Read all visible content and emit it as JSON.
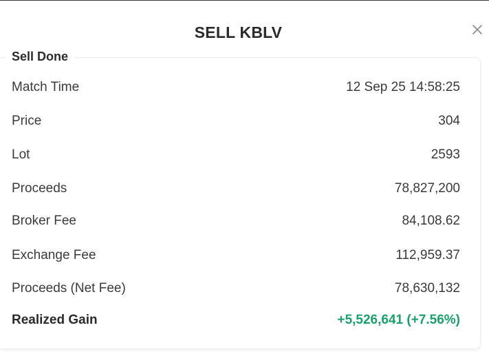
{
  "modal": {
    "title": "SELL KBLV",
    "close_icon": "close-icon",
    "section_title": "Sell Done"
  },
  "details": [
    {
      "label": "Match Time",
      "value": "12 Sep 25 14:58:25"
    },
    {
      "label": "Price",
      "value": "304"
    },
    {
      "label": "Lot",
      "value": "2593"
    },
    {
      "label": "Proceeds",
      "value": "78,827,200"
    },
    {
      "label": "Broker Fee",
      "value": "84,108.62"
    },
    {
      "label": "Exchange Fee",
      "value": "112,959.37"
    },
    {
      "label": "Proceeds (Net Fee)",
      "value": "78,630,132"
    },
    {
      "label": "Realized Gain",
      "value": "+5,526,641 (+7.56%)"
    }
  ],
  "colors": {
    "gain": "#1aa06b",
    "text": "#333333",
    "title": "#2b2b2b"
  }
}
